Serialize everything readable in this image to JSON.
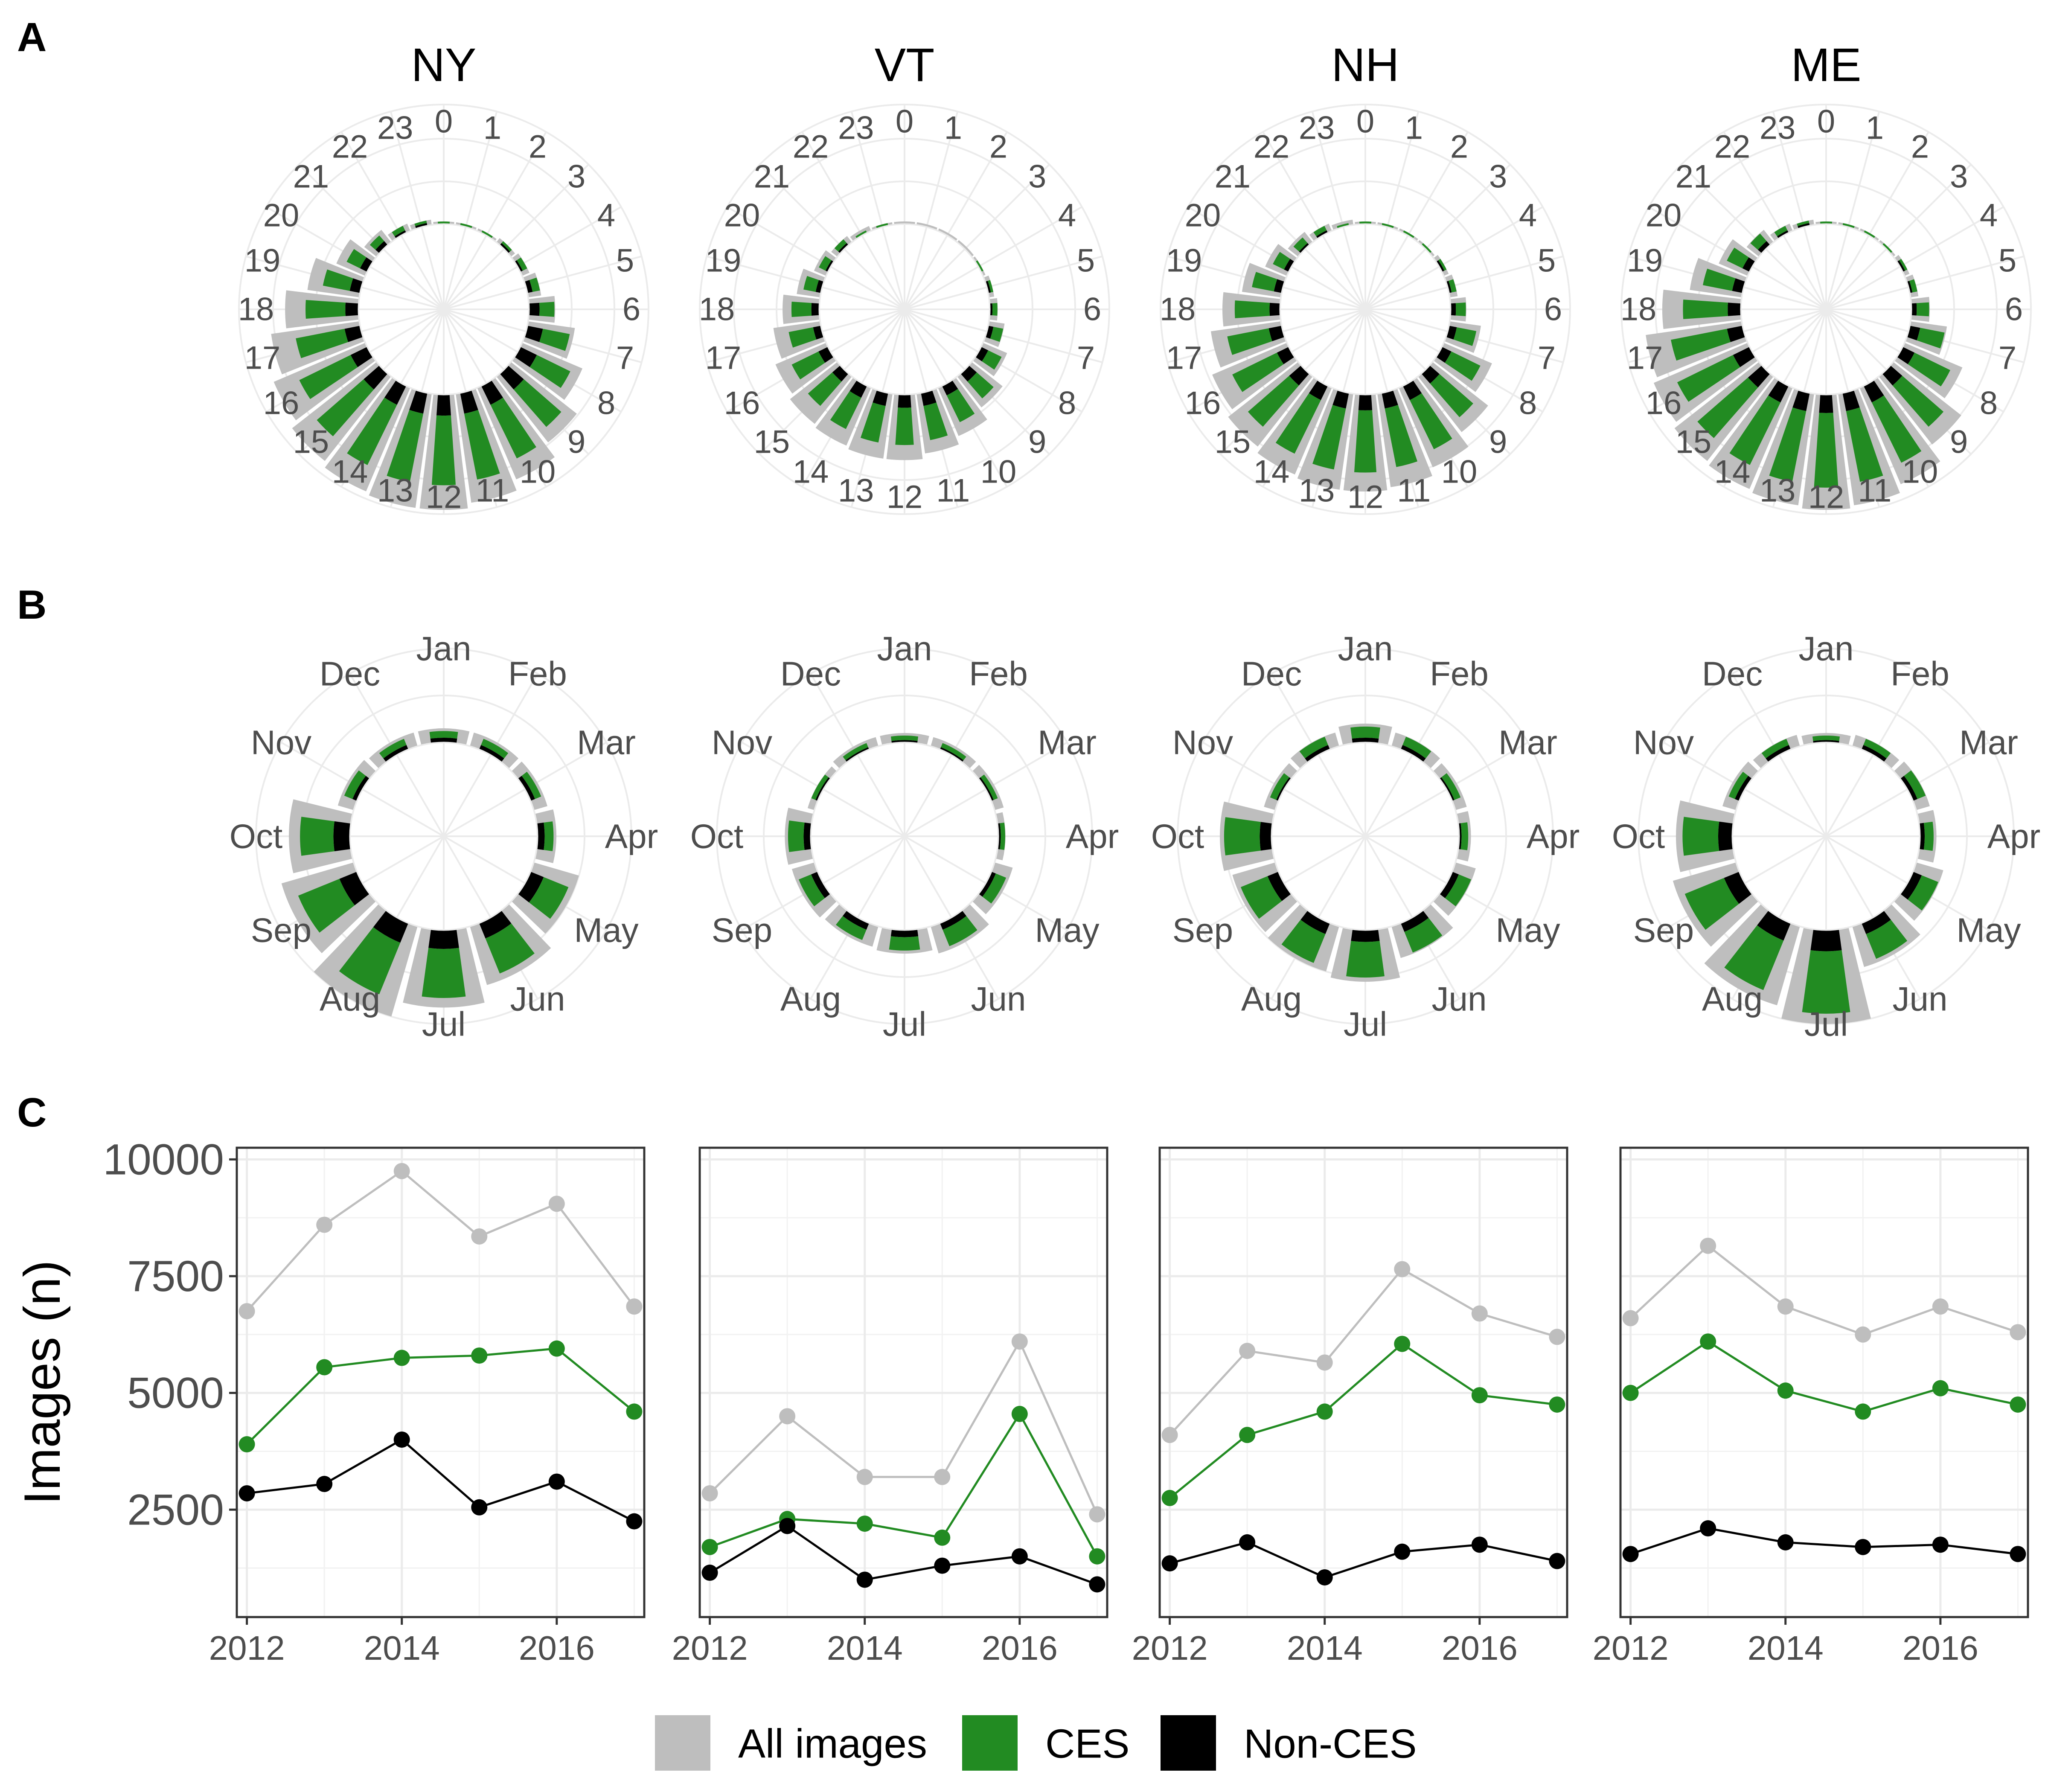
{
  "panel_labels": [
    "A",
    "B",
    "C"
  ],
  "states": [
    "NY",
    "VT",
    "NH",
    "ME"
  ],
  "hour_labels": [
    "0",
    "1",
    "2",
    "3",
    "4",
    "5",
    "6",
    "7",
    "8",
    "9",
    "10",
    "11",
    "12",
    "13",
    "14",
    "15",
    "16",
    "17",
    "18",
    "19",
    "20",
    "21",
    "22",
    "23"
  ],
  "month_labels": [
    "Jan",
    "Feb",
    "Mar",
    "Apr",
    "May",
    "Jun",
    "Jul",
    "Aug",
    "Sep",
    "Oct",
    "Nov",
    "Dec"
  ],
  "legend": [
    {
      "label": "All images",
      "color": "#bebebe"
    },
    {
      "label": "CES",
      "color": "#228b22"
    },
    {
      "label": "Non-CES",
      "color": "#000000"
    }
  ],
  "chart_data": [
    {
      "panel": "A",
      "type": "bar",
      "coord": "polar",
      "categories": [
        "0",
        "1",
        "2",
        "3",
        "4",
        "5",
        "6",
        "7",
        "8",
        "9",
        "10",
        "11",
        "12",
        "13",
        "14",
        "15",
        "16",
        "17",
        "18",
        "19",
        "20",
        "21",
        "22",
        "23"
      ],
      "facets": [
        {
          "title": "NY",
          "series": [
            {
              "name": "All images",
              "values": [
                1,
                1,
                1,
                2,
                3,
                5,
                10,
                18,
                25,
                32,
                38,
                42,
                44,
                44,
                43,
                41,
                38,
                34,
                28,
                20,
                12,
                6,
                3,
                2
              ]
            },
            {
              "name": "CES",
              "values": [
                1,
                1,
                1,
                1,
                2,
                3,
                6,
                11,
                15,
                20,
                24,
                27,
                28,
                28,
                27,
                25,
                23,
                20,
                16,
                11,
                6,
                3,
                2,
                1
              ]
            },
            {
              "name": "Non-CES",
              "values": [
                0,
                0,
                0,
                1,
                1,
                2,
                4,
                6,
                7,
                8,
                8,
                8,
                8,
                8,
                8,
                8,
                7,
                6,
                5,
                4,
                3,
                2,
                1,
                1
              ]
            }
          ]
        },
        {
          "title": "VT",
          "series": [
            {
              "name": "All images",
              "values": [
                1,
                1,
                1,
                1,
                1,
                2,
                3,
                6,
                10,
                15,
                20,
                23,
                25,
                25,
                24,
                23,
                21,
                18,
                14,
                9,
                5,
                3,
                2,
                1
              ]
            },
            {
              "name": "CES",
              "values": [
                0,
                0,
                0,
                0,
                1,
                1,
                2,
                4,
                6,
                9,
                12,
                14,
                15,
                15,
                14,
                13,
                12,
                10,
                8,
                5,
                3,
                2,
                1,
                1
              ]
            },
            {
              "name": "Non-CES",
              "values": [
                0,
                0,
                0,
                0,
                0,
                1,
                1,
                2,
                3,
                4,
                4,
                5,
                5,
                5,
                5,
                4,
                4,
                3,
                3,
                2,
                1,
                1,
                0,
                0
              ]
            }
          ]
        },
        {
          "title": "NH",
          "series": [
            {
              "name": "All images",
              "values": [
                1,
                1,
                1,
                1,
                2,
                3,
                6,
                12,
                20,
                27,
                33,
                36,
                37,
                37,
                36,
                34,
                31,
                27,
                22,
                15,
                9,
                5,
                3,
                2
              ]
            },
            {
              "name": "CES",
              "values": [
                1,
                1,
                1,
                1,
                1,
                2,
                4,
                8,
                13,
                18,
                22,
                24,
                25,
                25,
                24,
                22,
                20,
                17,
                14,
                9,
                5,
                3,
                2,
                1
              ]
            },
            {
              "name": "Non-CES",
              "values": [
                0,
                0,
                0,
                0,
                1,
                1,
                2,
                3,
                4,
                5,
                6,
                6,
                6,
                6,
                6,
                6,
                5,
                5,
                4,
                3,
                2,
                1,
                1,
                0
              ]
            }
          ]
        },
        {
          "title": "ME",
          "series": [
            {
              "name": "All images",
              "values": [
                1,
                1,
                1,
                1,
                2,
                3,
                7,
                14,
                24,
                33,
                40,
                43,
                44,
                43,
                42,
                41,
                39,
                37,
                30,
                20,
                12,
                6,
                3,
                2
              ]
            },
            {
              "name": "CES",
              "values": [
                1,
                1,
                1,
                1,
                1,
                2,
                5,
                10,
                16,
                22,
                27,
                29,
                30,
                29,
                28,
                27,
                25,
                23,
                18,
                12,
                7,
                4,
                2,
                1
              ]
            },
            {
              "name": "Non-CES",
              "values": [
                0,
                0,
                0,
                0,
                1,
                1,
                2,
                4,
                5,
                6,
                7,
                7,
                7,
                7,
                7,
                7,
                7,
                6,
                5,
                4,
                3,
                2,
                1,
                1
              ]
            }
          ]
        }
      ]
    },
    {
      "panel": "B",
      "type": "bar",
      "coord": "polar",
      "categories": [
        "Jan",
        "Feb",
        "Mar",
        "Apr",
        "May",
        "Jun",
        "Jul",
        "Aug",
        "Sep",
        "Oct",
        "Nov",
        "Dec"
      ],
      "facets": [
        {
          "title": "NY",
          "series": [
            {
              "name": "All images",
              "values": [
                6,
                6,
                6,
                8,
                20,
                26,
                33,
                40,
                32,
                26,
                7,
                6
              ]
            },
            {
              "name": "CES",
              "values": [
                3,
                3,
                3,
                4,
                12,
                17,
                22,
                25,
                20,
                15,
                4,
                3
              ]
            },
            {
              "name": "Non-CES",
              "values": [
                2,
                2,
                2,
                3,
                6,
                7,
                8,
                9,
                8,
                7,
                2,
                2
              ]
            }
          ]
        },
        {
          "title": "VT",
          "series": [
            {
              "name": "All images",
              "values": [
                4,
                4,
                4,
                3,
                8,
                12,
                10,
                9,
                10,
                11,
                3,
                4
              ]
            },
            {
              "name": "CES",
              "values": [
                2,
                2,
                2,
                2,
                5,
                8,
                6,
                5,
                6,
                7,
                2,
                2
              ]
            },
            {
              "name": "Non-CES",
              "values": [
                1,
                1,
                1,
                1,
                2,
                3,
                3,
                3,
                3,
                3,
                1,
                1
              ]
            }
          ]
        },
        {
          "title": "NH",
          "series": [
            {
              "name": "All images",
              "values": [
                8,
                6,
                5,
                5,
                9,
                14,
                22,
                20,
                19,
                22,
                5,
                6
              ]
            },
            {
              "name": "CES",
              "values": [
                5,
                4,
                3,
                3,
                6,
                10,
                16,
                14,
                13,
                16,
                3,
                4
              ]
            },
            {
              "name": "Non-CES",
              "values": [
                2,
                2,
                1,
                1,
                3,
                4,
                5,
                5,
                5,
                5,
                1,
                2
              ]
            }
          ]
        },
        {
          "title": "ME",
          "series": [
            {
              "name": "All images",
              "values": [
                4,
                5,
                6,
                7,
                12,
                18,
                40,
                35,
                28,
                24,
                6,
                5
              ]
            },
            {
              "name": "CES",
              "values": [
                2,
                3,
                4,
                4,
                8,
                12,
                28,
                24,
                19,
                16,
                3,
                3
              ]
            },
            {
              "name": "Non-CES",
              "values": [
                1,
                2,
                2,
                2,
                4,
                5,
                9,
                8,
                7,
                6,
                2,
                2
              ]
            }
          ]
        }
      ]
    },
    {
      "panel": "C",
      "type": "line",
      "x": [
        2012,
        2013,
        2014,
        2015,
        2016,
        2017
      ],
      "x_ticks": [
        2012,
        2014,
        2016
      ],
      "ylabel": "Images (n)",
      "ylim": [
        200,
        10250
      ],
      "y_ticks": [
        2500,
        5000,
        7500,
        10000
      ],
      "facets": [
        {
          "title": "NY",
          "series": [
            {
              "name": "All images",
              "values": [
                6750,
                8600,
                9750,
                8350,
                9050,
                6850
              ]
            },
            {
              "name": "CES",
              "values": [
                3900,
                5550,
                5750,
                5800,
                5950,
                4600
              ]
            },
            {
              "name": "Non-CES",
              "values": [
                2850,
                3050,
                4000,
                2550,
                3100,
                2250
              ]
            }
          ]
        },
        {
          "title": "VT",
          "series": [
            {
              "name": "All images",
              "values": [
                2850,
                4500,
                3200,
                3200,
                6100,
                2400
              ]
            },
            {
              "name": "CES",
              "values": [
                1700,
                2300,
                2200,
                1900,
                4550,
                1500
              ]
            },
            {
              "name": "Non-CES",
              "values": [
                1150,
                2150,
                1000,
                1300,
                1500,
                900
              ]
            }
          ]
        },
        {
          "title": "NH",
          "series": [
            {
              "name": "All images",
              "values": [
                4100,
                5900,
                5650,
                7650,
                6700,
                6200
              ]
            },
            {
              "name": "CES",
              "values": [
                2750,
                4100,
                4600,
                6050,
                4950,
                4750
              ]
            },
            {
              "name": "Non-CES",
              "values": [
                1350,
                1800,
                1050,
                1600,
                1750,
                1400
              ]
            }
          ]
        },
        {
          "title": "ME",
          "series": [
            {
              "name": "All images",
              "values": [
                6600,
                8150,
                6850,
                6250,
                6850,
                6300
              ]
            },
            {
              "name": "CES",
              "values": [
                5000,
                6100,
                5050,
                4600,
                5100,
                4750
              ]
            },
            {
              "name": "Non-CES",
              "values": [
                1550,
                2100,
                1800,
                1700,
                1750,
                1550
              ]
            }
          ]
        }
      ]
    }
  ]
}
